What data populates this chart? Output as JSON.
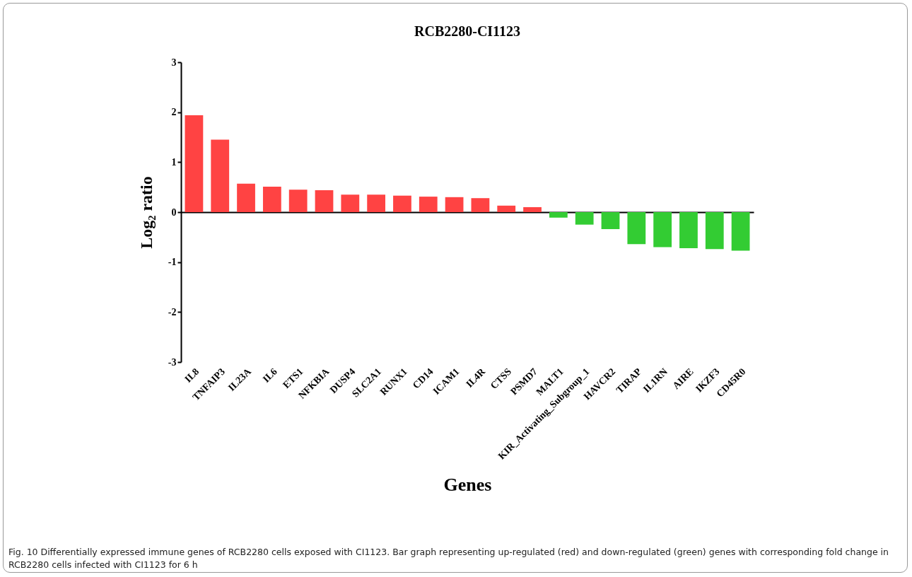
{
  "chart_data": {
    "type": "bar",
    "title": "RCB2280-CI1123",
    "xlabel": "Genes",
    "ylabel": "Log₂ ratio",
    "categories": [
      "IL8",
      "TNFAIP3",
      "IL23A",
      "IL6",
      "ETS1",
      "NFKBIA",
      "DUSP4",
      "SLC2A1",
      "RUNX1",
      "CD14",
      "ICAM1",
      "IL4R",
      "CTSS",
      "PSMD7",
      "MALT1",
      "KIR_Activating_Subgroup_1",
      "HAVCR2",
      "TIRAP",
      "IL1RN",
      "AIRE",
      "IKZF3",
      "CD45R0"
    ],
    "values": [
      1.94,
      1.45,
      0.57,
      0.51,
      0.45,
      0.44,
      0.35,
      0.35,
      0.33,
      0.31,
      0.3,
      0.28,
      0.13,
      0.1,
      -0.11,
      -0.25,
      -0.34,
      -0.64,
      -0.7,
      -0.72,
      -0.74,
      -0.77
    ],
    "colors": [
      "#ff4343",
      "#ff4343",
      "#ff4343",
      "#ff4343",
      "#ff4343",
      "#ff4343",
      "#ff4343",
      "#ff4343",
      "#ff4343",
      "#ff4343",
      "#ff4343",
      "#ff4343",
      "#ff4343",
      "#ff4343",
      "#33cc33",
      "#33cc33",
      "#33cc33",
      "#33cc33",
      "#33cc33",
      "#33cc33",
      "#33cc33",
      "#33cc33"
    ],
    "ylim": [
      -3,
      3
    ],
    "yticks": [
      -3,
      -2,
      -1,
      0,
      1,
      2,
      3
    ],
    "annotations": [
      "Fig. 10  Differentially expressed immune genes of RCB2280 cells exposed with CI1123. Bar graph representing up-regulated (red) and down-regulated (green) genes with corresponding fold change in RCB2280 cells infected with CI1123 for 6 h"
    ]
  }
}
